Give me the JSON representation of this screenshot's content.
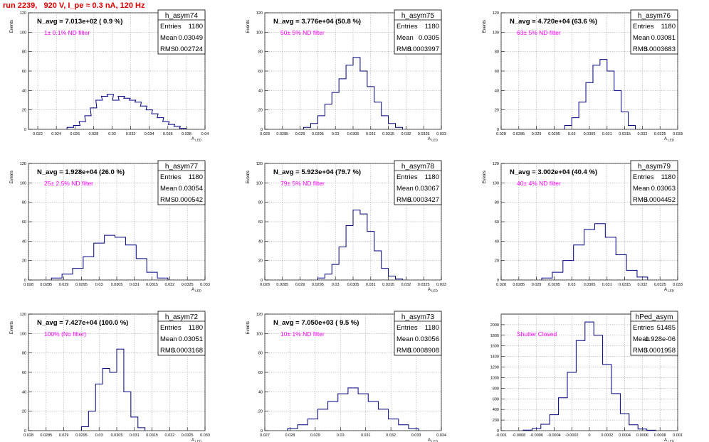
{
  "title": "run 2239,   920 V, I_pe ≈ 0.3 nA, 120 Hz",
  "chart_data": [
    {
      "type": "histogram",
      "name": "h_asym74",
      "navg": "N_avg = 7.013e+02 ( 0.9 %)",
      "filter": "1± 0.1% ND filter",
      "entries": "1180",
      "mean": "0.03049",
      "rms": "0.002724",
      "xlabel": "A_LED",
      "ylabel": "Events",
      "xlim": [
        0.021,
        0.04
      ],
      "ylim": [
        0,
        120
      ],
      "xticks": [
        0.022,
        0.024,
        0.026,
        0.028,
        0.03,
        0.032,
        0.034,
        0.036,
        0.038,
        0.04
      ],
      "xtick_labels": [
        "0.022",
        "0.024",
        "0.026",
        "0.028",
        "0.03",
        "0.032",
        "0.034",
        "0.036",
        "0.038",
        "0.04"
      ],
      "yticks": [
        0,
        20,
        40,
        60,
        80,
        100,
        120
      ],
      "x": [
        0.0255,
        0.0262,
        0.0268,
        0.0274,
        0.028,
        0.0286,
        0.0292,
        0.0298,
        0.0304,
        0.031,
        0.0316,
        0.0322,
        0.0328,
        0.0334,
        0.034,
        0.0346,
        0.0352,
        0.0358,
        0.0364,
        0.037,
        0.0376
      ],
      "y": [
        2,
        4,
        8,
        14,
        22,
        30,
        34,
        36,
        30,
        34,
        32,
        30,
        28,
        24,
        20,
        16,
        12,
        8,
        5,
        3,
        1
      ]
    },
    {
      "type": "histogram",
      "name": "h_asym75",
      "navg": "N_avg = 3.776e+04 (50.8 %)",
      "filter": "50± 5% ND filter",
      "entries": "1180",
      "mean": "0.0305",
      "rms": "0.0003997",
      "xlabel": "A_LED",
      "ylabel": "Events",
      "xlim": [
        0.028,
        0.033
      ],
      "ylim": [
        0,
        120
      ],
      "xticks": [
        0.028,
        0.0285,
        0.029,
        0.0295,
        0.03,
        0.0305,
        0.031,
        0.0315,
        0.032,
        0.0325,
        0.033
      ],
      "xtick_labels": [
        "0.028",
        "0.0285",
        "0.029",
        "0.0295",
        "0.03",
        "0.0305",
        "0.031",
        "0.0315",
        "0.032",
        "0.0325",
        "0.033"
      ],
      "yticks": [
        0,
        20,
        40,
        60,
        80,
        100,
        120
      ],
      "x": [
        0.0292,
        0.0294,
        0.0296,
        0.0298,
        0.03,
        0.0302,
        0.0304,
        0.0306,
        0.0308,
        0.031,
        0.0312,
        0.0314,
        0.0316,
        0.0318
      ],
      "y": [
        2,
        6,
        14,
        26,
        38,
        52,
        66,
        74,
        60,
        44,
        28,
        14,
        6,
        2
      ]
    },
    {
      "type": "histogram",
      "name": "h_asym76",
      "navg": "N_avg = 4.720e+04 (63.6 %)",
      "filter": "63± 5% ND filter",
      "entries": "1180",
      "mean": "0.03081",
      "rms": "0.0003683",
      "xlabel": "A_LED",
      "ylabel": "Events",
      "xlim": [
        0.028,
        0.033
      ],
      "ylim": [
        0,
        120
      ],
      "xticks": [
        0.028,
        0.0285,
        0.029,
        0.0295,
        0.03,
        0.0305,
        0.031,
        0.0315,
        0.032,
        0.0325,
        0.033
      ],
      "xtick_labels": [
        "0.028",
        "0.0285",
        "0.029",
        "0.0295",
        "0.03",
        "0.0305",
        "0.031",
        "0.0315",
        "0.032",
        "0.0325",
        "0.033"
      ],
      "yticks": [
        0,
        20,
        40,
        60,
        80,
        100,
        120
      ],
      "x": [
        0.0299,
        0.0301,
        0.0303,
        0.0305,
        0.0307,
        0.0309,
        0.0311,
        0.0313,
        0.0315,
        0.0317
      ],
      "y": [
        4,
        12,
        28,
        48,
        66,
        72,
        60,
        40,
        18,
        4
      ]
    },
    {
      "type": "histogram",
      "name": "h_asym77",
      "navg": "N_avg = 1.928e+04 (26.0 %)",
      "filter": "25± 2.5% ND filter",
      "entries": "1180",
      "mean": "0.03054",
      "rms": "0.000542",
      "xlabel": "A_LED",
      "ylabel": "Events",
      "xlim": [
        0.028,
        0.033
      ],
      "ylim": [
        0,
        120
      ],
      "xticks": [
        0.028,
        0.0285,
        0.029,
        0.0295,
        0.03,
        0.0305,
        0.031,
        0.0315,
        0.032,
        0.0325,
        0.033
      ],
      "xtick_labels": [
        "0.028",
        "0.0285",
        "0.029",
        "0.0295",
        "0.03",
        "0.0305",
        "0.031",
        "0.0315",
        "0.032",
        "0.0325",
        "0.033"
      ],
      "yticks": [
        0,
        20,
        40,
        60,
        80,
        100,
        120
      ],
      "x": [
        0.0288,
        0.0291,
        0.0294,
        0.0297,
        0.03,
        0.0303,
        0.0306,
        0.0309,
        0.0312,
        0.0315,
        0.0318
      ],
      "y": [
        2,
        6,
        12,
        24,
        38,
        46,
        44,
        36,
        22,
        8,
        2
      ]
    },
    {
      "type": "histogram",
      "name": "h_asym78",
      "navg": "N_avg = 5.923e+04 (79.7 %)",
      "filter": "79± 5% ND filter",
      "entries": "1180",
      "mean": "0.03067",
      "rms": "0.0003427",
      "xlabel": "A_LED",
      "ylabel": "Events",
      "xlim": [
        0.028,
        0.033
      ],
      "ylim": [
        0,
        120
      ],
      "xticks": [
        0.028,
        0.0285,
        0.029,
        0.0295,
        0.03,
        0.0305,
        0.031,
        0.0315,
        0.032,
        0.0325,
        0.033
      ],
      "xtick_labels": [
        "0.028",
        "0.0285",
        "0.029",
        "0.0295",
        "0.03",
        "0.0305",
        "0.031",
        "0.0315",
        "0.032",
        "0.0325",
        "0.033"
      ],
      "yticks": [
        0,
        20,
        40,
        60,
        80,
        100,
        120
      ],
      "x": [
        0.0296,
        0.0298,
        0.03,
        0.0302,
        0.0304,
        0.0306,
        0.0308,
        0.031,
        0.0312,
        0.0314,
        0.0316,
        0.0318
      ],
      "y": [
        2,
        6,
        16,
        34,
        56,
        72,
        68,
        50,
        30,
        12,
        4,
        1
      ]
    },
    {
      "type": "histogram",
      "name": "h_asym79",
      "navg": "N_avg = 3.002e+04 (40.4 %)",
      "filter": "40± 4% ND filter",
      "entries": "1180",
      "mean": "0.03063",
      "rms": "0.0004452",
      "xlabel": "A_LED",
      "ylabel": "Events",
      "xlim": [
        0.028,
        0.033
      ],
      "ylim": [
        0,
        120
      ],
      "xticks": [
        0.028,
        0.0285,
        0.029,
        0.0295,
        0.03,
        0.0305,
        0.031,
        0.0315,
        0.032,
        0.0325,
        0.033
      ],
      "xtick_labels": [
        "0.028",
        "0.0285",
        "0.029",
        "0.0295",
        "0.03",
        "0.0305",
        "0.031",
        "0.0315",
        "0.032",
        "0.0325",
        "0.033"
      ],
      "yticks": [
        0,
        20,
        40,
        60,
        80,
        100,
        120
      ],
      "x": [
        0.0293,
        0.0296,
        0.0299,
        0.0302,
        0.0305,
        0.0308,
        0.0311,
        0.0314,
        0.0317,
        0.032
      ],
      "y": [
        2,
        8,
        20,
        36,
        52,
        58,
        44,
        26,
        10,
        3
      ]
    },
    {
      "type": "histogram",
      "name": "h_asym72",
      "navg": "N_avg = 7.427e+04 (100.0 %)",
      "filter": "100% (No filter)",
      "entries": "1180",
      "mean": "0.03051",
      "rms": "0.0003168",
      "xlabel": "A_LED",
      "ylabel": "Events",
      "xlim": [
        0.028,
        0.033
      ],
      "ylim": [
        0,
        120
      ],
      "xticks": [
        0.028,
        0.0285,
        0.029,
        0.0295,
        0.03,
        0.0305,
        0.031,
        0.0315,
        0.032,
        0.0325,
        0.033
      ],
      "xtick_labels": [
        "0.028",
        "0.0285",
        "0.029",
        "0.0295",
        "0.03",
        "0.0305",
        "0.031",
        "0.0315",
        "0.032",
        "0.0325",
        "0.033"
      ],
      "yticks": [
        0,
        20,
        40,
        60,
        80,
        100,
        120
      ],
      "x": [
        0.0296,
        0.0298,
        0.03,
        0.0302,
        0.0304,
        0.0306,
        0.0308,
        0.031,
        0.0312
      ],
      "y": [
        4,
        20,
        48,
        64,
        60,
        84,
        40,
        14,
        3
      ]
    },
    {
      "type": "histogram",
      "name": "h_asym73",
      "navg": "N_avg = 7.050e+03 ( 9.5 %)",
      "filter": "10± 1% ND filter",
      "entries": "1180",
      "mean": "0.03056",
      "rms": "0.0008908",
      "xlabel": "A_LED",
      "ylabel": "Events",
      "xlim": [
        0.027,
        0.034
      ],
      "ylim": [
        0,
        120
      ],
      "xticks": [
        0.027,
        0.028,
        0.029,
        0.03,
        0.031,
        0.032,
        0.033,
        0.034
      ],
      "xtick_labels": [
        "0.027",
        "0.028",
        "0.029",
        "0.03",
        "0.031",
        "0.032",
        "0.033",
        "0.034"
      ],
      "yticks": [
        0,
        20,
        40,
        60,
        80,
        100,
        120
      ],
      "x": [
        0.0281,
        0.0285,
        0.0289,
        0.0293,
        0.0297,
        0.0301,
        0.0305,
        0.0309,
        0.0313,
        0.0317,
        0.0321,
        0.0325,
        0.0329
      ],
      "y": [
        2,
        6,
        12,
        22,
        30,
        38,
        44,
        38,
        30,
        22,
        12,
        6,
        2
      ]
    },
    {
      "type": "histogram",
      "name": "hPed_asym",
      "navg": "",
      "filter": "Shutter Closed",
      "entries": "51485",
      "mean": "-1.928e-06",
      "rms": "0.0001958",
      "xlabel": "A_LED",
      "ylabel": "",
      "xlim": [
        -0.001,
        0.001
      ],
      "ylim": [
        0,
        2200
      ],
      "xticks": [
        -0.001,
        -0.0008,
        -0.0006,
        -0.0004,
        -0.0002,
        0,
        0.0002,
        0.0004,
        0.0006,
        0.0008,
        0.001
      ],
      "xtick_labels": [
        "-0.001",
        "-0.0008",
        "-0.0006",
        "-0.0004",
        "-0.0002",
        "0",
        "0.0002",
        "0.0004",
        "0.0006",
        "0.0008",
        "0.001"
      ],
      "yticks": [
        0,
        200,
        400,
        600,
        800,
        1000,
        1200,
        1400,
        1600,
        1800,
        2000
      ],
      "x": [
        -0.0007,
        -0.0006,
        -0.0005,
        -0.0004,
        -0.0003,
        -0.0002,
        -0.0001,
        0,
        0.0001,
        0.0002,
        0.0003,
        0.0004,
        0.0005,
        0.0006,
        0.0007
      ],
      "y": [
        10,
        40,
        120,
        300,
        620,
        1100,
        1700,
        2050,
        1800,
        1250,
        700,
        320,
        110,
        30,
        8
      ]
    }
  ]
}
